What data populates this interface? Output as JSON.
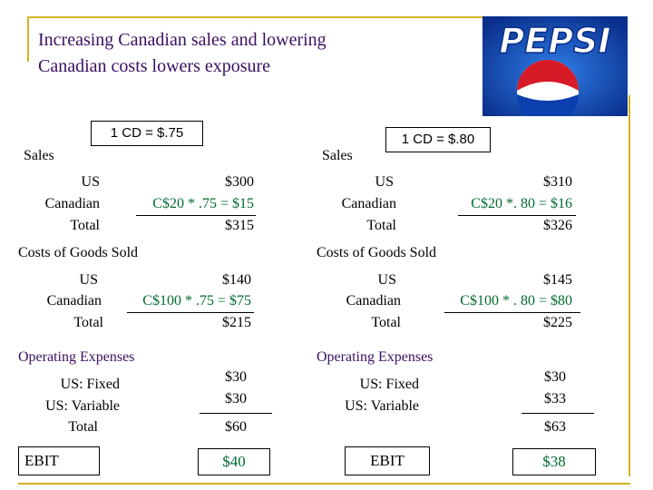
{
  "title": {
    "line1": "Increasing Canadian sales and lowering",
    "line2": "Canadian costs lowers exposure"
  },
  "logo": {
    "text": "PEPSI"
  },
  "left": {
    "rate_box": "1 CD = $.75",
    "sales_label": "Sales",
    "sales": {
      "us_label": "US",
      "us_value": "$300",
      "canadian_label": "Canadian",
      "canadian_value": "C$20 * .75 = $15",
      "total_label": "Total",
      "total_value": "$315"
    },
    "cogs_label": "Costs of Goods Sold",
    "cogs": {
      "us_label": "US",
      "us_value": "$140",
      "canadian_label": "Canadian",
      "canadian_value": "C$100 * .75 = $75",
      "total_label": "Total",
      "total_value": "$215"
    },
    "opex_label": "Operating Expenses",
    "opex": {
      "fixed_label": "US: Fixed",
      "fixed_value": "$30",
      "variable_label": "US: Variable",
      "variable_value": "$30",
      "total_label": "Total",
      "total_value": "$60"
    },
    "ebit_label": "EBIT",
    "ebit_value": "$40"
  },
  "right": {
    "rate_box": "1 CD = $.80",
    "sales_label": "Sales",
    "sales": {
      "us_label": "US",
      "us_value": "$310",
      "canadian_label": "Canadian",
      "canadian_value": "C$20 *. 80 = $16",
      "total_label": "Total",
      "total_value": "$326"
    },
    "cogs_label": "Costs of Goods Sold",
    "cogs": {
      "us_label": "US",
      "us_value": "$145",
      "canadian_label": "Canadian",
      "canadian_value": "C$100 * . 80 = $80",
      "total_label": "Total",
      "total_value": "$225"
    },
    "opex_label": "Operating Expenses",
    "opex": {
      "fixed_label": "US: Fixed",
      "fixed_value": "$30",
      "variable_label": "US: Variable",
      "variable_value": "$33",
      "total_value": "$63"
    },
    "ebit_label": "EBIT",
    "ebit_value": "$38"
  },
  "colors": {
    "green": "#006b2f",
    "purple": "#3a0f63",
    "frame": "#d4b21e",
    "pepsi_blue": "#0a3aa8"
  }
}
